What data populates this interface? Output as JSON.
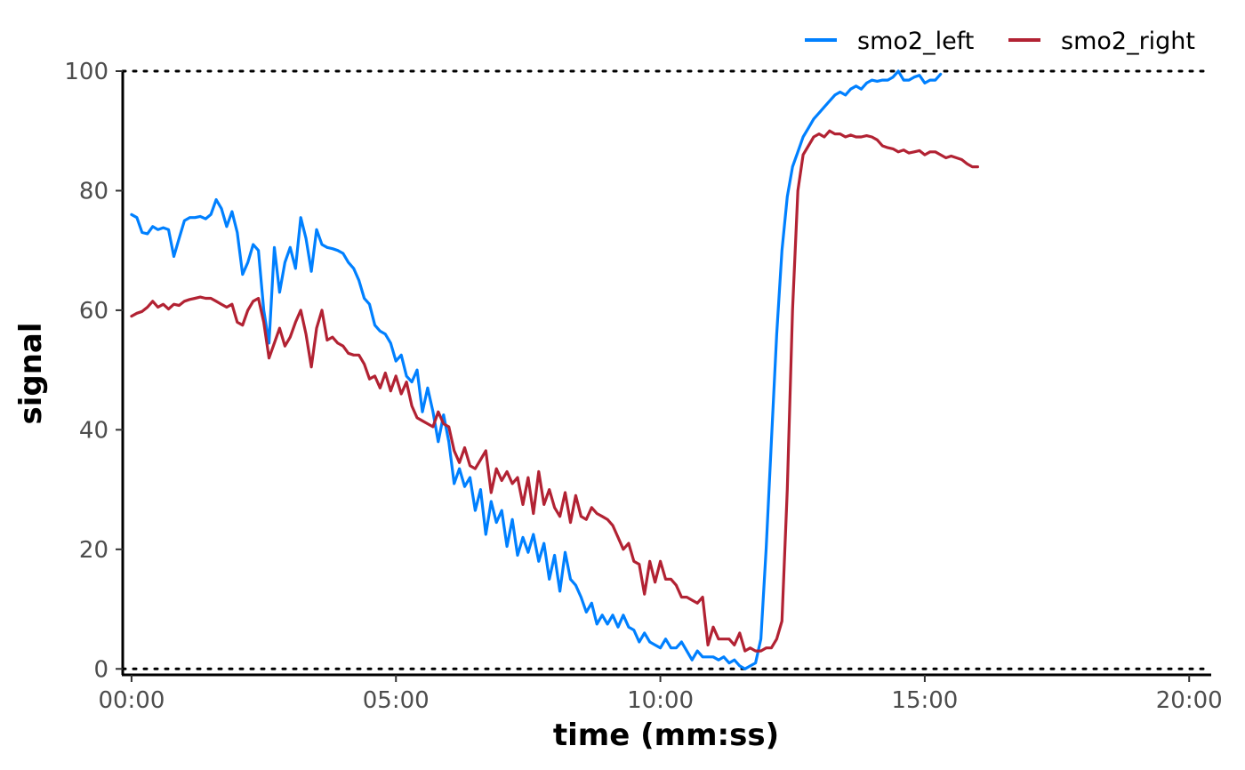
{
  "chart_data": {
    "type": "line",
    "xlabel": "time (mm:ss)",
    "ylabel": "signal",
    "xlim": [
      -10,
      1225
    ],
    "ylim": [
      -1,
      100
    ],
    "x_ticks": [
      0,
      300,
      600,
      900,
      1200
    ],
    "x_tick_labels": [
      "00:00",
      "05:00",
      "10:00",
      "15:00",
      "20:00"
    ],
    "y_ticks": [
      0,
      20,
      40,
      60,
      80,
      100
    ],
    "y_tick_labels": [
      "0",
      "20",
      "40",
      "60",
      "80",
      "100"
    ],
    "reference_lines": [
      0,
      100
    ],
    "grid": false,
    "legend_position": "top-right",
    "series": [
      {
        "name": "smo2_left",
        "color": "#0080ff",
        "points": [
          [
            0,
            76
          ],
          [
            6,
            75.5
          ],
          [
            12,
            73
          ],
          [
            18,
            72.8
          ],
          [
            24,
            74
          ],
          [
            30,
            73.5
          ],
          [
            36,
            73.8
          ],
          [
            42,
            73.5
          ],
          [
            48,
            69
          ],
          [
            54,
            72
          ],
          [
            60,
            75
          ],
          [
            66,
            75.5
          ],
          [
            72,
            75.5
          ],
          [
            78,
            75.7
          ],
          [
            84,
            75.3
          ],
          [
            90,
            76
          ],
          [
            96,
            78.5
          ],
          [
            102,
            77
          ],
          [
            108,
            74
          ],
          [
            114,
            76.5
          ],
          [
            120,
            73
          ],
          [
            126,
            66
          ],
          [
            132,
            68
          ],
          [
            138,
            71
          ],
          [
            144,
            70
          ],
          [
            150,
            60
          ],
          [
            156,
            54.5
          ],
          [
            162,
            70.5
          ],
          [
            168,
            63
          ],
          [
            174,
            68
          ],
          [
            180,
            70.5
          ],
          [
            186,
            67
          ],
          [
            192,
            75.5
          ],
          [
            198,
            72
          ],
          [
            204,
            66.5
          ],
          [
            210,
            73.5
          ],
          [
            216,
            71
          ],
          [
            222,
            70.5
          ],
          [
            228,
            70.3
          ],
          [
            234,
            70
          ],
          [
            240,
            69.5
          ],
          [
            246,
            68
          ],
          [
            252,
            67
          ],
          [
            258,
            65
          ],
          [
            264,
            62
          ],
          [
            270,
            61
          ],
          [
            276,
            57.5
          ],
          [
            282,
            56.5
          ],
          [
            288,
            56
          ],
          [
            294,
            54.5
          ],
          [
            300,
            51.5
          ],
          [
            306,
            52.5
          ],
          [
            312,
            49
          ],
          [
            318,
            48
          ],
          [
            324,
            50
          ],
          [
            330,
            43
          ],
          [
            336,
            47
          ],
          [
            342,
            43
          ],
          [
            348,
            38
          ],
          [
            354,
            42.5
          ],
          [
            360,
            38
          ],
          [
            366,
            31
          ],
          [
            372,
            33.5
          ],
          [
            378,
            30.5
          ],
          [
            384,
            32
          ],
          [
            390,
            26.5
          ],
          [
            396,
            30
          ],
          [
            402,
            22.5
          ],
          [
            408,
            28
          ],
          [
            414,
            24.5
          ],
          [
            420,
            26.5
          ],
          [
            426,
            20.5
          ],
          [
            432,
            25
          ],
          [
            438,
            19
          ],
          [
            444,
            22
          ],
          [
            450,
            19.5
          ],
          [
            456,
            22.5
          ],
          [
            462,
            18
          ],
          [
            468,
            21
          ],
          [
            474,
            15
          ],
          [
            480,
            19
          ],
          [
            486,
            13
          ],
          [
            492,
            19.5
          ],
          [
            498,
            15
          ],
          [
            504,
            14
          ],
          [
            510,
            12
          ],
          [
            516,
            9.5
          ],
          [
            522,
            11
          ],
          [
            528,
            7.5
          ],
          [
            534,
            9
          ],
          [
            540,
            7.5
          ],
          [
            546,
            9
          ],
          [
            552,
            7
          ],
          [
            558,
            9
          ],
          [
            564,
            7
          ],
          [
            570,
            6.5
          ],
          [
            576,
            4.5
          ],
          [
            582,
            6
          ],
          [
            588,
            4.5
          ],
          [
            594,
            4
          ],
          [
            600,
            3.5
          ],
          [
            606,
            5
          ],
          [
            612,
            3.5
          ],
          [
            618,
            3.5
          ],
          [
            624,
            4.5
          ],
          [
            630,
            3
          ],
          [
            636,
            1.5
          ],
          [
            642,
            3
          ],
          [
            648,
            2
          ],
          [
            654,
            2
          ],
          [
            660,
            2
          ],
          [
            666,
            1.5
          ],
          [
            672,
            2
          ],
          [
            678,
            1
          ],
          [
            684,
            1.5
          ],
          [
            690,
            0.5
          ],
          [
            696,
            0
          ],
          [
            702,
            0.5
          ],
          [
            708,
            1
          ],
          [
            714,
            5
          ],
          [
            720,
            20
          ],
          [
            726,
            38
          ],
          [
            732,
            56
          ],
          [
            738,
            70
          ],
          [
            744,
            79
          ],
          [
            750,
            84
          ],
          [
            756,
            86.5
          ],
          [
            762,
            89
          ],
          [
            768,
            90.5
          ],
          [
            774,
            92
          ],
          [
            780,
            93
          ],
          [
            786,
            94
          ],
          [
            792,
            95
          ],
          [
            798,
            96
          ],
          [
            804,
            96.5
          ],
          [
            810,
            96
          ],
          [
            816,
            97
          ],
          [
            822,
            97.5
          ],
          [
            828,
            97
          ],
          [
            834,
            98
          ],
          [
            840,
            98.5
          ],
          [
            846,
            98.3
          ],
          [
            852,
            98.5
          ],
          [
            858,
            98.5
          ],
          [
            864,
            99
          ],
          [
            870,
            100
          ],
          [
            876,
            98.5
          ],
          [
            882,
            98.5
          ],
          [
            888,
            99
          ],
          [
            894,
            99.3
          ],
          [
            900,
            98
          ],
          [
            906,
            98.5
          ],
          [
            912,
            98.5
          ],
          [
            918,
            99.5
          ]
        ]
      },
      {
        "name": "smo2_right",
        "color": "#b22233",
        "points": [
          [
            0,
            59
          ],
          [
            6,
            59.5
          ],
          [
            12,
            59.8
          ],
          [
            18,
            60.5
          ],
          [
            24,
            61.5
          ],
          [
            30,
            60.5
          ],
          [
            36,
            61
          ],
          [
            42,
            60.2
          ],
          [
            48,
            61
          ],
          [
            54,
            60.8
          ],
          [
            60,
            61.5
          ],
          [
            66,
            61.8
          ],
          [
            72,
            62
          ],
          [
            78,
            62.2
          ],
          [
            84,
            62
          ],
          [
            90,
            62
          ],
          [
            96,
            61.5
          ],
          [
            102,
            61
          ],
          [
            108,
            60.5
          ],
          [
            114,
            61
          ],
          [
            120,
            58
          ],
          [
            126,
            57.5
          ],
          [
            132,
            60
          ],
          [
            138,
            61.5
          ],
          [
            144,
            62
          ],
          [
            150,
            58
          ],
          [
            156,
            52
          ],
          [
            162,
            54.5
          ],
          [
            168,
            57
          ],
          [
            174,
            54
          ],
          [
            180,
            55.5
          ],
          [
            186,
            58
          ],
          [
            192,
            60
          ],
          [
            198,
            56
          ],
          [
            204,
            50.5
          ],
          [
            210,
            57
          ],
          [
            216,
            60
          ],
          [
            222,
            55
          ],
          [
            228,
            55.5
          ],
          [
            234,
            54.5
          ],
          [
            240,
            54
          ],
          [
            246,
            52.8
          ],
          [
            252,
            52.5
          ],
          [
            258,
            52.5
          ],
          [
            264,
            51
          ],
          [
            270,
            48.5
          ],
          [
            276,
            49
          ],
          [
            282,
            47
          ],
          [
            288,
            49.5
          ],
          [
            294,
            46.5
          ],
          [
            300,
            49
          ],
          [
            306,
            46
          ],
          [
            312,
            48
          ],
          [
            318,
            44
          ],
          [
            324,
            42
          ],
          [
            330,
            41.5
          ],
          [
            336,
            41
          ],
          [
            342,
            40.5
          ],
          [
            348,
            43
          ],
          [
            354,
            41
          ],
          [
            360,
            40.5
          ],
          [
            366,
            36.5
          ],
          [
            372,
            34.5
          ],
          [
            378,
            37
          ],
          [
            384,
            34
          ],
          [
            390,
            33.5
          ],
          [
            396,
            35
          ],
          [
            402,
            36.5
          ],
          [
            408,
            29.5
          ],
          [
            414,
            33.5
          ],
          [
            420,
            31.5
          ],
          [
            426,
            33
          ],
          [
            432,
            31
          ],
          [
            438,
            32
          ],
          [
            444,
            27.5
          ],
          [
            450,
            32
          ],
          [
            456,
            26
          ],
          [
            462,
            33
          ],
          [
            468,
            27.5
          ],
          [
            474,
            30
          ],
          [
            480,
            27
          ],
          [
            486,
            25.5
          ],
          [
            492,
            29.5
          ],
          [
            498,
            24.5
          ],
          [
            504,
            29
          ],
          [
            510,
            25.5
          ],
          [
            516,
            25
          ],
          [
            522,
            27
          ],
          [
            528,
            26
          ],
          [
            534,
            25.5
          ],
          [
            540,
            25
          ],
          [
            546,
            24
          ],
          [
            552,
            22
          ],
          [
            558,
            20
          ],
          [
            564,
            21
          ],
          [
            570,
            18
          ],
          [
            576,
            17.5
          ],
          [
            582,
            12.5
          ],
          [
            588,
            18
          ],
          [
            594,
            14.5
          ],
          [
            600,
            18
          ],
          [
            606,
            15
          ],
          [
            612,
            15
          ],
          [
            618,
            14
          ],
          [
            624,
            12
          ],
          [
            630,
            12
          ],
          [
            636,
            11.5
          ],
          [
            642,
            11
          ],
          [
            648,
            12
          ],
          [
            654,
            4
          ],
          [
            660,
            7
          ],
          [
            666,
            5
          ],
          [
            672,
            5
          ],
          [
            678,
            5
          ],
          [
            684,
            4
          ],
          [
            690,
            6
          ],
          [
            696,
            3
          ],
          [
            702,
            3.5
          ],
          [
            708,
            3
          ],
          [
            714,
            3
          ],
          [
            720,
            3.5
          ],
          [
            726,
            3.5
          ],
          [
            732,
            5
          ],
          [
            738,
            8
          ],
          [
            744,
            30
          ],
          [
            750,
            60
          ],
          [
            756,
            80
          ],
          [
            762,
            86
          ],
          [
            768,
            87.5
          ],
          [
            774,
            89
          ],
          [
            780,
            89.5
          ],
          [
            786,
            89
          ],
          [
            792,
            90
          ],
          [
            798,
            89.5
          ],
          [
            804,
            89.5
          ],
          [
            810,
            89
          ],
          [
            816,
            89.3
          ],
          [
            822,
            89
          ],
          [
            828,
            89
          ],
          [
            834,
            89.2
          ],
          [
            840,
            89
          ],
          [
            846,
            88.5
          ],
          [
            852,
            87.5
          ],
          [
            858,
            87.2
          ],
          [
            864,
            87
          ],
          [
            870,
            86.5
          ],
          [
            876,
            86.8
          ],
          [
            882,
            86.3
          ],
          [
            888,
            86.5
          ],
          [
            894,
            86.7
          ],
          [
            900,
            86
          ],
          [
            906,
            86.5
          ],
          [
            912,
            86.5
          ],
          [
            918,
            86
          ],
          [
            924,
            85.5
          ],
          [
            930,
            85.8
          ],
          [
            936,
            85.5
          ],
          [
            942,
            85.2
          ],
          [
            948,
            84.5
          ],
          [
            954,
            84
          ],
          [
            960,
            84
          ]
        ]
      }
    ]
  }
}
